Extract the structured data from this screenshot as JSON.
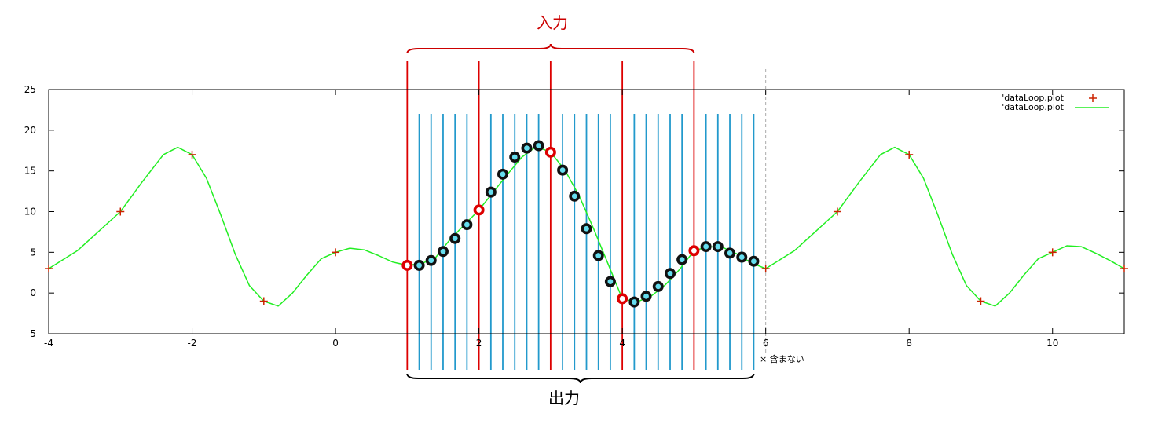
{
  "chart_data": {
    "type": "line",
    "xlim": [
      -4,
      11
    ],
    "ylim": [
      -5,
      25
    ],
    "x_ticks": [
      -4,
      -2,
      0,
      2,
      4,
      6,
      8,
      10
    ],
    "y_ticks": [
      -5,
      0,
      5,
      10,
      15,
      20,
      25
    ],
    "grid": false,
    "legend_position": "top-right",
    "series": [
      {
        "name": "'dataLoop.plot'",
        "kind": "points",
        "marker": "+",
        "color": "#cc2200",
        "x": [
          -4,
          -3,
          -2,
          -1,
          0,
          1,
          2,
          3,
          4,
          5,
          6,
          7,
          8,
          9,
          10,
          11
        ],
        "y": [
          3,
          10,
          17,
          -1,
          5,
          3.4,
          10.2,
          17.3,
          -0.7,
          5.2,
          3,
          10,
          17,
          -1,
          5,
          3
        ]
      },
      {
        "name": "'dataLoop.plot'",
        "kind": "line",
        "color": "#22ee22",
        "x": [
          -4,
          -3.6,
          -3.3,
          -3,
          -2.7,
          -2.4,
          -2.2,
          -2,
          -1.8,
          -1.6,
          -1.4,
          -1.2,
          -1,
          -0.8,
          -0.6,
          -0.4,
          -0.2,
          0,
          0.2,
          0.4,
          0.6,
          0.8,
          1,
          1.2,
          1.4,
          1.6,
          1.8,
          2,
          2.2,
          2.4,
          2.6,
          2.8,
          3,
          3.2,
          3.4,
          3.6,
          3.8,
          4,
          4.2,
          4.4,
          4.6,
          4.8,
          5,
          5.2,
          5.4,
          5.6,
          5.8,
          6,
          6.4,
          6.7,
          7,
          7.3,
          7.6,
          7.8,
          8,
          8.2,
          8.4,
          8.6,
          8.8,
          9,
          9.2,
          9.4,
          9.6,
          9.8,
          10,
          10.2,
          10.4,
          10.6,
          10.8,
          11
        ],
        "y": [
          3,
          5.2,
          7.6,
          10,
          13.6,
          17,
          17.9,
          17,
          14.1,
          9.6,
          4.8,
          0.9,
          -1,
          -1.6,
          0,
          2.2,
          4.2,
          5,
          5.5,
          5.3,
          4.6,
          3.8,
          3.4,
          3.6,
          4.4,
          6.6,
          8.4,
          10.2,
          12.4,
          14.6,
          16.7,
          18,
          17.3,
          15.1,
          11.9,
          7.9,
          3.6,
          -0.7,
          -1.1,
          -0.4,
          1,
          2.9,
          5.2,
          5.7,
          5.6,
          4.8,
          3.7,
          3,
          5.2,
          7.6,
          10,
          13.6,
          17,
          17.9,
          17,
          14.1,
          9.6,
          4.8,
          0.9,
          -1,
          -1.6,
          0,
          2.2,
          4.2,
          5,
          5.8,
          5.7,
          4.9,
          4,
          3
        ]
      }
    ],
    "input_points": {
      "color": "#dd0000",
      "x": [
        1,
        2,
        3,
        4,
        5
      ],
      "y": [
        3.4,
        10.2,
        17.3,
        -0.7,
        5.2
      ]
    },
    "output_points": {
      "color": "#111111",
      "x": [
        1.167,
        1.333,
        1.5,
        1.667,
        1.833,
        2.167,
        2.333,
        2.5,
        2.667,
        2.833,
        3.167,
        3.333,
        3.5,
        3.667,
        3.833,
        4.167,
        4.333,
        4.5,
        4.667,
        4.833,
        5.167,
        5.333,
        5.5,
        5.667,
        5.833
      ],
      "y": [
        3.4,
        4,
        5.1,
        6.7,
        8.4,
        12.4,
        14.6,
        16.7,
        17.8,
        18.1,
        15.1,
        11.9,
        7.9,
        4.6,
        1.4,
        -1.1,
        -0.4,
        0.8,
        2.4,
        4.1,
        5.7,
        5.7,
        4.9,
        4.4,
        3.9
      ]
    },
    "annotations": {
      "input_label": "入力",
      "output_label": "出力",
      "excluded_label": "× 含まない",
      "input_color": "#cc0000",
      "output_line_color": "#2299cc"
    }
  }
}
